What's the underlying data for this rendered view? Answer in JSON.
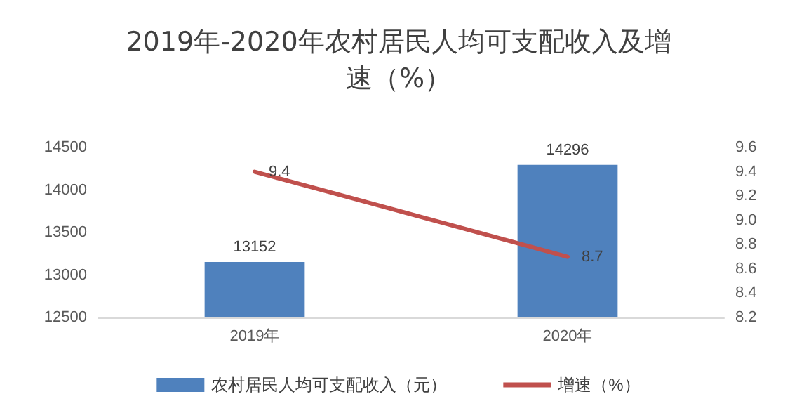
{
  "chart_data": {
    "type": "bar",
    "title": "2019年-2020年农村居民人均可支配收入及增速（%）",
    "categories": [
      "2019年",
      "2020年"
    ],
    "series": [
      {
        "name": "农村居民人均可支配收入（元）",
        "color": "#4f81bd",
        "values": [
          13152,
          14296
        ]
      },
      {
        "name": "增速（%）",
        "type": "line",
        "axis": "y2",
        "color": "#c0504d",
        "values": [
          9.4,
          8.7
        ]
      }
    ],
    "ylim": [
      12500,
      14500
    ],
    "yticks": [
      12500,
      13000,
      13500,
      14000,
      14500
    ],
    "y2lim": [
      8.2,
      9.6
    ],
    "y2ticks": [
      8.2,
      8.4,
      8.6,
      8.8,
      {
        "value": 9,
        "label": "9.0"
      },
      9.2,
      9.4,
      9.6
    ],
    "data_labels": true,
    "grid": false,
    "legend": "bottom",
    "marker": "none"
  }
}
